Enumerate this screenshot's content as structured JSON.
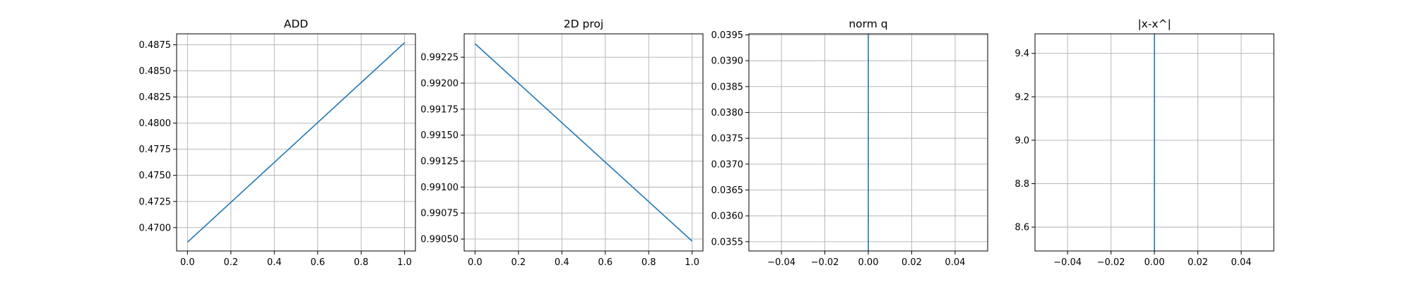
{
  "chart_data": [
    {
      "type": "line",
      "title": "ADD",
      "xlabel": "",
      "ylabel": "",
      "x": [
        0.0,
        1.0
      ],
      "series": [
        {
          "values": [
            0.4686,
            0.4877
          ]
        }
      ],
      "xlim": [
        -0.05,
        1.05
      ],
      "ylim": [
        0.46776,
        0.48855
      ],
      "xticks": [
        0.0,
        0.2,
        0.4,
        0.6,
        0.8,
        1.0
      ],
      "xtick_labels": [
        "0.0",
        "0.2",
        "0.4",
        "0.6",
        "0.8",
        "1.0"
      ],
      "yticks": [
        0.47,
        0.4725,
        0.475,
        0.4775,
        0.48,
        0.4825,
        0.485,
        0.4875
      ],
      "ytick_labels": [
        "0.4700",
        "0.4725",
        "0.4750",
        "0.4775",
        "0.4800",
        "0.4825",
        "0.4850",
        "0.4875"
      ],
      "grid": true,
      "line_color": "#1f77b4"
    },
    {
      "type": "line",
      "title": "2D proj",
      "xlabel": "",
      "ylabel": "",
      "x": [
        0.0,
        1.0
      ],
      "series": [
        {
          "values": [
            0.99238,
            0.99048
          ]
        }
      ],
      "xlim": [
        -0.05,
        1.05
      ],
      "ylim": [
        0.990385,
        0.992475
      ],
      "xticks": [
        0.0,
        0.2,
        0.4,
        0.6,
        0.8,
        1.0
      ],
      "xtick_labels": [
        "0.0",
        "0.2",
        "0.4",
        "0.6",
        "0.8",
        "1.0"
      ],
      "yticks": [
        0.9905,
        0.99075,
        0.991,
        0.99125,
        0.9915,
        0.99175,
        0.992,
        0.99225
      ],
      "ytick_labels": [
        "0.99050",
        "0.99075",
        "0.99100",
        "0.99125",
        "0.99150",
        "0.99175",
        "0.99200",
        "0.99225"
      ],
      "grid": true,
      "line_color": "#1f77b4"
    },
    {
      "type": "line",
      "title": "norm q",
      "xlabel": "",
      "ylabel": "",
      "x": [
        0.0,
        0.0
      ],
      "series": [
        {
          "values": [
            0.03532,
            0.03952
          ]
        }
      ],
      "xlim": [
        -0.055,
        0.055
      ],
      "ylim": [
        0.03532,
        0.03952
      ],
      "xticks": [
        -0.04,
        -0.02,
        0.0,
        0.02,
        0.04
      ],
      "xtick_labels": [
        "−0.04",
        "−0.02",
        "0.00",
        "0.02",
        "0.04"
      ],
      "yticks": [
        0.0355,
        0.036,
        0.0365,
        0.037,
        0.0375,
        0.038,
        0.0385,
        0.039,
        0.0395
      ],
      "ytick_labels": [
        "0.0355",
        "0.0360",
        "0.0365",
        "0.0370",
        "0.0375",
        "0.0380",
        "0.0385",
        "0.0390",
        "0.0395"
      ],
      "grid": true,
      "line_color": "#1f77b4"
    },
    {
      "type": "line",
      "title": "|x-x^|",
      "xlabel": "",
      "ylabel": "",
      "x": [
        0.0,
        0.0
      ],
      "series": [
        {
          "values": [
            8.49,
            9.49
          ]
        }
      ],
      "xlim": [
        -0.055,
        0.055
      ],
      "ylim": [
        8.49,
        9.49
      ],
      "xticks": [
        -0.04,
        -0.02,
        0.0,
        0.02,
        0.04
      ],
      "xtick_labels": [
        "−0.04",
        "−0.02",
        "0.00",
        "0.02",
        "0.04"
      ],
      "yticks": [
        8.6,
        8.8,
        9.0,
        9.2,
        9.4
      ],
      "ytick_labels": [
        "8.6",
        "8.8",
        "9.0",
        "9.2",
        "9.4"
      ],
      "grid": true,
      "line_color": "#1f77b4"
    }
  ]
}
